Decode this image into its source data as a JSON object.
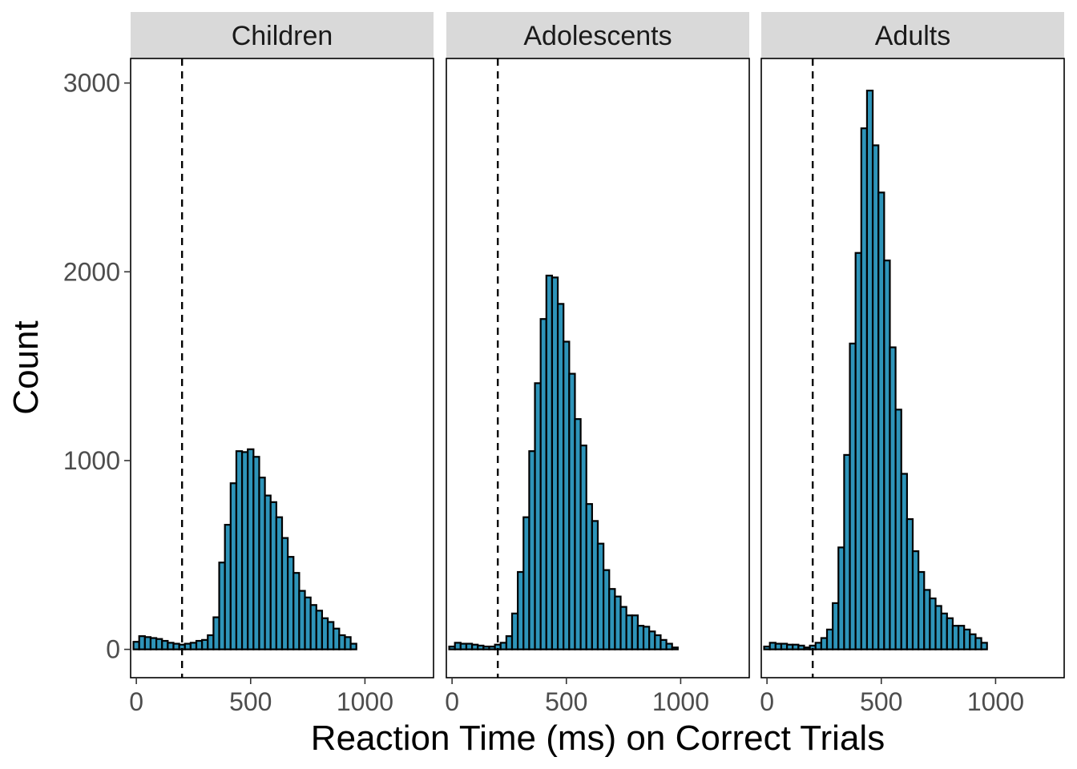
{
  "chart_data": {
    "type": "bar",
    "subtype": "faceted histogram",
    "xlabel": "Reaction Time (ms) on Correct Trials",
    "ylabel": "Count",
    "xlim": [
      -25,
      1300
    ],
    "ylim": [
      -150,
      3130
    ],
    "xticks": [
      0,
      500,
      1000
    ],
    "yticks": [
      0,
      1000,
      2000,
      3000
    ],
    "bin_width": 25,
    "bin_start": -12.5,
    "cutoff_line": 200,
    "grid": false,
    "legend": "none",
    "bar_fill": "#2e94b9",
    "bar_outline": "#000000",
    "strip_fill": "#d9d9d9",
    "panels": [
      {
        "name": "Children",
        "values": [
          40,
          70,
          65,
          60,
          55,
          45,
          35,
          30,
          25,
          30,
          35,
          45,
          50,
          75,
          170,
          460,
          660,
          880,
          1050,
          1045,
          1060,
          1020,
          910,
          815,
          780,
          700,
          590,
          490,
          405,
          310,
          275,
          235,
          205,
          165,
          145,
          110,
          75,
          65,
          30
        ]
      },
      {
        "name": "Adolescents",
        "values": [
          15,
          35,
          30,
          30,
          25,
          20,
          15,
          15,
          25,
          35,
          70,
          190,
          410,
          700,
          1050,
          1410,
          1750,
          1980,
          1970,
          1830,
          1630,
          1460,
          1220,
          1080,
          770,
          680,
          560,
          420,
          320,
          280,
          225,
          180,
          180,
          125,
          120,
          95,
          75,
          50,
          30,
          10
        ]
      },
      {
        "name": "Adults",
        "values": [
          15,
          35,
          30,
          30,
          25,
          25,
          20,
          10,
          20,
          35,
          60,
          105,
          245,
          540,
          1030,
          1620,
          2100,
          2760,
          2960,
          2670,
          2420,
          2060,
          1600,
          1270,
          930,
          690,
          520,
          410,
          315,
          270,
          230,
          190,
          165,
          125,
          125,
          105,
          80,
          60,
          35
        ]
      }
    ]
  }
}
